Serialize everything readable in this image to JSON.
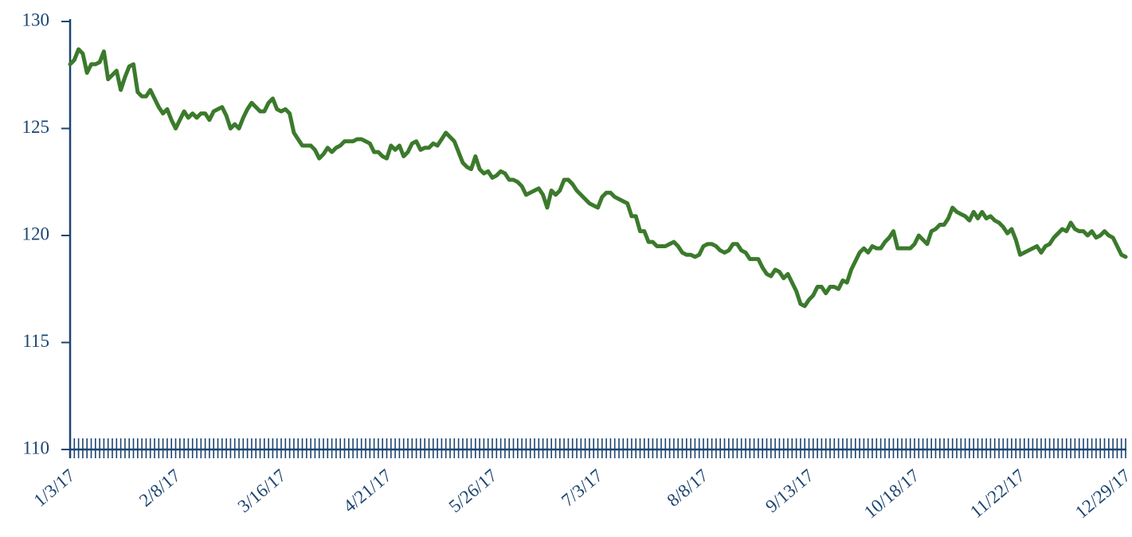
{
  "chart_data": {
    "type": "line",
    "color": "#3b7a2c",
    "ylim": [
      110,
      130
    ],
    "yticks": [
      110,
      115,
      120,
      125,
      130
    ],
    "categories": [
      "1/3/17",
      null,
      null,
      null,
      null,
      null,
      null,
      null,
      null,
      null,
      null,
      null,
      null,
      null,
      null,
      null,
      null,
      null,
      null,
      null,
      null,
      null,
      null,
      null,
      null,
      "2/8/17",
      null,
      null,
      null,
      null,
      null,
      null,
      null,
      null,
      null,
      null,
      null,
      null,
      null,
      null,
      null,
      null,
      null,
      null,
      null,
      null,
      null,
      null,
      null,
      null,
      "3/16/17",
      null,
      null,
      null,
      null,
      null,
      null,
      null,
      null,
      null,
      null,
      null,
      null,
      null,
      null,
      null,
      null,
      null,
      null,
      null,
      null,
      null,
      null,
      null,
      null,
      "4/21/17",
      null,
      null,
      null,
      null,
      null,
      null,
      null,
      null,
      null,
      null,
      null,
      null,
      null,
      null,
      null,
      null,
      null,
      null,
      null,
      null,
      null,
      null,
      null,
      null,
      "5/26/17",
      null,
      null,
      null,
      null,
      null,
      null,
      null,
      null,
      null,
      null,
      null,
      null,
      null,
      null,
      null,
      null,
      null,
      null,
      null,
      null,
      null,
      null,
      null,
      null,
      "7/3/17",
      null,
      null,
      null,
      null,
      null,
      null,
      null,
      null,
      null,
      null,
      null,
      null,
      null,
      null,
      null,
      null,
      null,
      null,
      null,
      null,
      null,
      null,
      null,
      null,
      "8/8/17",
      null,
      null,
      null,
      null,
      null,
      null,
      null,
      null,
      null,
      null,
      null,
      null,
      null,
      null,
      null,
      null,
      null,
      null,
      null,
      null,
      null,
      null,
      null,
      null,
      "9/13/17",
      null,
      null,
      null,
      null,
      null,
      null,
      null,
      null,
      null,
      null,
      null,
      null,
      null,
      null,
      null,
      null,
      null,
      null,
      null,
      null,
      null,
      null,
      null,
      null,
      "10/18/17",
      null,
      null,
      null,
      null,
      null,
      null,
      null,
      null,
      null,
      null,
      null,
      null,
      null,
      null,
      null,
      null,
      null,
      null,
      null,
      null,
      null,
      null,
      null,
      null,
      "11/22/17",
      null,
      null,
      null,
      null,
      null,
      null,
      null,
      null,
      null,
      null,
      null,
      null,
      null,
      null,
      null,
      null,
      null,
      null,
      null,
      null,
      null,
      null,
      null,
      null,
      "12/29/17"
    ],
    "values": [
      128.0,
      128.2,
      128.7,
      128.5,
      127.6,
      128.0,
      128.0,
      128.1,
      128.6,
      127.3,
      127.5,
      127.7,
      126.8,
      127.4,
      127.9,
      128.0,
      126.7,
      126.5,
      126.5,
      126.8,
      126.4,
      126.0,
      125.7,
      125.9,
      125.4,
      125.0,
      125.4,
      125.8,
      125.5,
      125.7,
      125.5,
      125.7,
      125.7,
      125.4,
      125.8,
      125.9,
      126.0,
      125.6,
      125.0,
      125.2,
      125.0,
      125.5,
      125.9,
      126.2,
      126.0,
      125.8,
      125.8,
      126.2,
      126.4,
      125.9,
      125.8,
      125.9,
      125.7,
      124.8,
      124.5,
      124.2,
      124.2,
      124.2,
      124.0,
      123.6,
      123.8,
      124.1,
      123.9,
      124.1,
      124.2,
      124.4,
      124.4,
      124.4,
      124.5,
      124.5,
      124.4,
      124.3,
      123.9,
      123.9,
      123.7,
      123.6,
      124.2,
      124.0,
      124.2,
      123.7,
      123.9,
      124.3,
      124.4,
      124.0,
      124.1,
      124.1,
      124.3,
      124.2,
      124.5,
      124.8,
      124.6,
      124.4,
      123.9,
      123.4,
      123.2,
      123.1,
      123.7,
      123.1,
      122.9,
      123.0,
      122.7,
      122.8,
      123.0,
      122.9,
      122.6,
      122.6,
      122.5,
      122.3,
      121.9,
      122.0,
      122.1,
      122.2,
      121.9,
      121.3,
      122.1,
      121.9,
      122.1,
      122.6,
      122.6,
      122.4,
      122.1,
      121.9,
      121.7,
      121.5,
      121.4,
      121.3,
      121.8,
      122.0,
      122.0,
      121.8,
      121.7,
      121.6,
      121.5,
      120.9,
      120.9,
      120.2,
      120.2,
      119.7,
      119.7,
      119.5,
      119.5,
      119.5,
      119.6,
      119.7,
      119.5,
      119.2,
      119.1,
      119.1,
      119.0,
      119.1,
      119.5,
      119.6,
      119.6,
      119.5,
      119.3,
      119.2,
      119.3,
      119.6,
      119.6,
      119.3,
      119.2,
      118.9,
      118.9,
      118.9,
      118.5,
      118.2,
      118.1,
      118.4,
      118.3,
      118.0,
      118.2,
      117.8,
      117.4,
      116.8,
      116.7,
      117.0,
      117.2,
      117.6,
      117.6,
      117.3,
      117.6,
      117.6,
      117.5,
      117.9,
      117.8,
      118.4,
      118.8,
      119.2,
      119.4,
      119.2,
      119.5,
      119.4,
      119.4,
      119.7,
      119.9,
      120.2,
      119.4,
      119.4,
      119.4,
      119.4,
      119.6,
      120.0,
      119.8,
      119.6,
      120.2,
      120.3,
      120.5,
      120.5,
      120.8,
      121.3,
      121.1,
      121.0,
      120.9,
      120.7,
      121.1,
      120.8,
      121.1,
      120.8,
      120.9,
      120.7,
      120.6,
      120.4,
      120.1,
      120.3,
      119.8,
      119.1,
      119.2,
      119.3,
      119.4,
      119.5,
      119.2,
      119.5,
      119.6,
      119.9,
      120.1,
      120.3,
      120.2,
      120.6,
      120.3,
      120.2,
      120.2,
      120.0,
      120.2,
      119.9,
      120.0,
      120.2,
      120.0,
      119.9,
      119.5,
      119.1,
      119.0
    ]
  }
}
